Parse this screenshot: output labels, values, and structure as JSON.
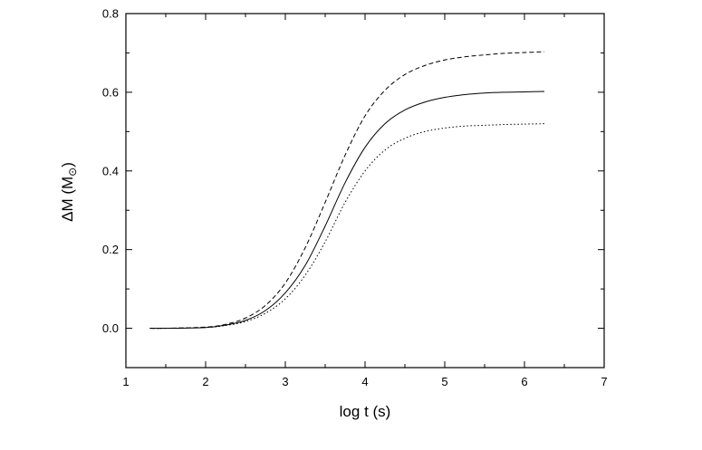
{
  "chart_data": {
    "type": "line",
    "title": "",
    "xlabel": "log t (s)",
    "ylabel_main": "ΔM (M",
    "ylabel_sub": "⊙",
    "ylabel_close": ")",
    "xlim": [
      1,
      7
    ],
    "ylim": [
      -0.1,
      0.8
    ],
    "x_ticks": [
      1,
      2,
      3,
      4,
      5,
      6,
      7
    ],
    "x_tick_labels": [
      "1",
      "2",
      "3",
      "4",
      "5",
      "6",
      "7"
    ],
    "y_ticks": [
      0.0,
      0.2,
      0.4,
      0.6,
      0.8
    ],
    "y_tick_labels": [
      "0.0",
      "0.2",
      "0.4",
      "0.6",
      "0.8"
    ],
    "grid": false,
    "legend": "none",
    "series": [
      {
        "style": "dashed",
        "color": "#000000",
        "x": [
          1.3,
          1.5,
          2.0,
          2.25,
          2.5,
          2.75,
          3.0,
          3.25,
          3.5,
          3.75,
          4.0,
          4.25,
          4.5,
          4.75,
          5.0,
          5.25,
          5.5,
          5.75,
          6.0,
          6.25
        ],
        "y": [
          0.0,
          0.0,
          0.003,
          0.01,
          0.026,
          0.058,
          0.115,
          0.205,
          0.32,
          0.44,
          0.54,
          0.605,
          0.645,
          0.668,
          0.682,
          0.69,
          0.695,
          0.699,
          0.701,
          0.703
        ]
      },
      {
        "style": "solid",
        "color": "#000000",
        "x": [
          1.3,
          1.5,
          2.0,
          2.25,
          2.5,
          2.75,
          3.0,
          3.25,
          3.5,
          3.75,
          4.0,
          4.25,
          4.5,
          4.75,
          5.0,
          5.25,
          5.5,
          5.75,
          6.0,
          6.25
        ],
        "y": [
          0.0,
          0.0,
          0.002,
          0.008,
          0.02,
          0.045,
          0.09,
          0.16,
          0.26,
          0.37,
          0.46,
          0.52,
          0.555,
          0.575,
          0.587,
          0.594,
          0.598,
          0.6,
          0.601,
          0.602
        ]
      },
      {
        "style": "dotted",
        "color": "#000000",
        "x": [
          1.3,
          1.5,
          2.0,
          2.25,
          2.5,
          2.75,
          3.0,
          3.25,
          3.5,
          3.75,
          4.0,
          4.25,
          4.5,
          4.75,
          5.0,
          5.25,
          5.5,
          5.75,
          6.0,
          6.25
        ],
        "y": [
          0.0,
          0.0,
          0.002,
          0.007,
          0.017,
          0.038,
          0.075,
          0.135,
          0.22,
          0.32,
          0.4,
          0.453,
          0.483,
          0.5,
          0.509,
          0.514,
          0.516,
          0.518,
          0.519,
          0.52
        ]
      }
    ]
  }
}
